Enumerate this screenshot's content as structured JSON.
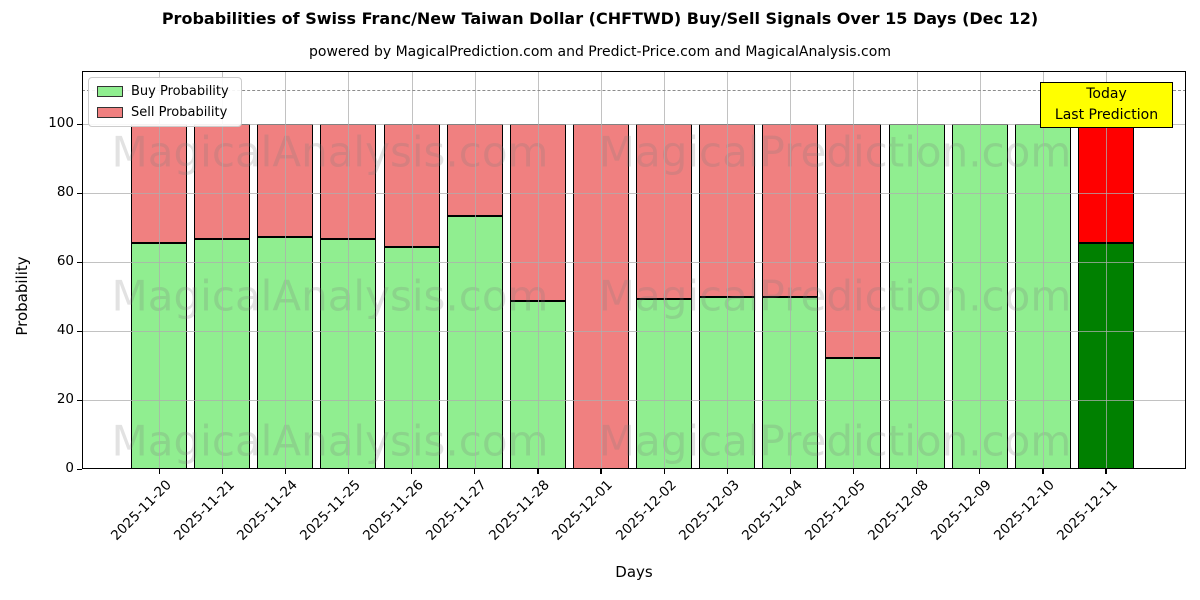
{
  "chart_data": {
    "type": "bar",
    "stacked": true,
    "title": "Probabilities of Swiss Franc/New Taiwan Dollar (CHFTWD) Buy/Sell Signals Over 15 Days (Dec 12)",
    "subtitle": "powered by MagicalPrediction.com and Predict-Price.com and MagicalAnalysis.com",
    "xlabel": "Days",
    "ylabel": "Probability",
    "categories": [
      "2025-11-20",
      "2025-11-21",
      "2025-11-24",
      "2025-11-25",
      "2025-11-26",
      "2025-11-27",
      "2025-11-28",
      "2025-12-01",
      "2025-12-02",
      "2025-12-03",
      "2025-12-04",
      "2025-12-05",
      "2025-12-08",
      "2025-12-09",
      "2025-12-10",
      "2025-12-11"
    ],
    "series": [
      {
        "name": "Buy Probability",
        "color": "#90EE90",
        "values": [
          65.4,
          66.6,
          67.4,
          66.6,
          64.3,
          73.3,
          48.6,
          0,
          49.3,
          50.0,
          49.9,
          32.1,
          100,
          100,
          100,
          65.4
        ]
      },
      {
        "name": "Sell Probability",
        "color": "#F08080",
        "values": [
          34.6,
          33.4,
          32.6,
          33.4,
          35.7,
          26.7,
          51.4,
          100,
          50.7,
          50.0,
          50.1,
          67.9,
          0,
          0,
          0,
          34.6
        ]
      }
    ],
    "highlight_last_bar": {
      "buy_color": "#008000",
      "sell_color": "#FF0000",
      "box_color": "#ffff00",
      "label_line1": "Today",
      "label_line2": "Last Prediction"
    },
    "yticks": [
      0,
      20,
      40,
      60,
      80,
      100
    ],
    "ylim": [
      0,
      115.4
    ],
    "dashed_line_y": 110,
    "grid": true,
    "legend_position": "upper left",
    "bar_edge_color": "#000000",
    "watermark_left": "MagicalAnalysis.com",
    "watermark_right": "MagicalPrediction.com"
  }
}
